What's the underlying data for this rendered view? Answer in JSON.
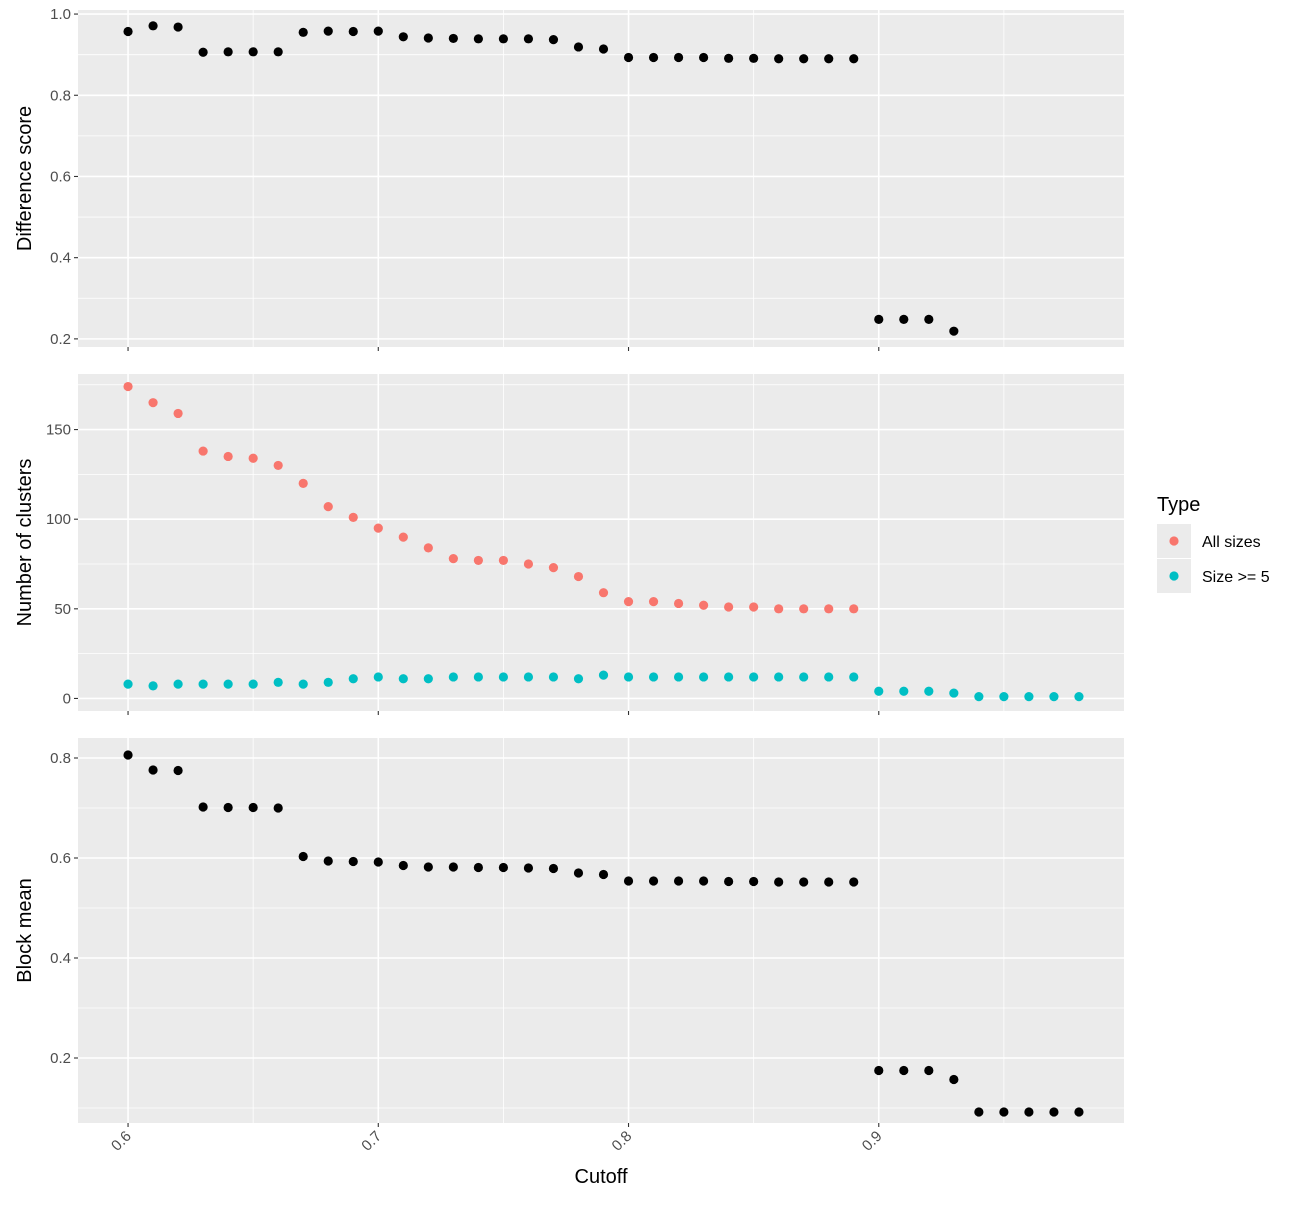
{
  "chart_data": {
    "type": "scatter",
    "xlabel": "Cutoff",
    "x_ticks": [
      "0.6",
      "0.7",
      "0.8",
      "0.9"
    ],
    "xlim": [
      0.58,
      0.998
    ],
    "grid": true,
    "legend": {
      "title": "Type",
      "placement": "right",
      "entries": [
        {
          "label": "All sizes",
          "color": "#F8766D"
        },
        {
          "label": "Size >= 5",
          "color": "#00BFC4"
        }
      ]
    },
    "panels": [
      {
        "ylabel": "Difference score",
        "ylim": [
          0.18,
          1.01
        ],
        "y_ticks": [
          "0.2",
          "0.4",
          "0.6",
          "0.8",
          "1.0"
        ],
        "series": [
          {
            "color": "#000000",
            "x": [
              0.6,
              0.61,
              0.62,
              0.63,
              0.64,
              0.65,
              0.66,
              0.67,
              0.68,
              0.69,
              0.7,
              0.71,
              0.72,
              0.73,
              0.74,
              0.75,
              0.76,
              0.77,
              0.78,
              0.79,
              0.8,
              0.81,
              0.82,
              0.83,
              0.84,
              0.85,
              0.86,
              0.87,
              0.88,
              0.89,
              0.9,
              0.91,
              0.92,
              0.93
            ],
            "y": [
              0.957,
              0.971,
              0.968,
              0.906,
              0.907,
              0.907,
              0.907,
              0.955,
              0.958,
              0.957,
              0.958,
              0.944,
              0.941,
              0.94,
              0.939,
              0.939,
              0.939,
              0.937,
              0.919,
              0.914,
              0.893,
              0.893,
              0.893,
              0.893,
              0.891,
              0.891,
              0.89,
              0.89,
              0.89,
              0.89,
              0.248,
              0.248,
              0.248,
              0.219
            ]
          }
        ]
      },
      {
        "ylabel": "Number of clusters",
        "ylim": [
          -7,
          181
        ],
        "y_ticks": [
          "0",
          "50",
          "100",
          "150"
        ],
        "series": [
          {
            "name": "All sizes",
            "color": "#F8766D",
            "x": [
              0.6,
              0.61,
              0.62,
              0.63,
              0.64,
              0.65,
              0.66,
              0.67,
              0.68,
              0.69,
              0.7,
              0.71,
              0.72,
              0.73,
              0.74,
              0.75,
              0.76,
              0.77,
              0.78,
              0.79,
              0.8,
              0.81,
              0.82,
              0.83,
              0.84,
              0.85,
              0.86,
              0.87,
              0.88,
              0.89
            ],
            "y": [
              174,
              165,
              159,
              138,
              135,
              134,
              130,
              120,
              107,
              101,
              95,
              90,
              84,
              78,
              77,
              77,
              75,
              73,
              68,
              59,
              54,
              54,
              53,
              52,
              51,
              51,
              50,
              50,
              50,
              50
            ]
          },
          {
            "name": "Size >= 5",
            "color": "#00BFC4",
            "x": [
              0.6,
              0.61,
              0.62,
              0.63,
              0.64,
              0.65,
              0.66,
              0.67,
              0.68,
              0.69,
              0.7,
              0.71,
              0.72,
              0.73,
              0.74,
              0.75,
              0.76,
              0.77,
              0.78,
              0.79,
              0.8,
              0.81,
              0.82,
              0.83,
              0.84,
              0.85,
              0.86,
              0.87,
              0.88,
              0.89,
              0.9,
              0.91,
              0.92,
              0.93,
              0.94,
              0.95,
              0.96,
              0.97,
              0.98
            ],
            "y": [
              8,
              7,
              8,
              8,
              8,
              8,
              9,
              8,
              9,
              11,
              12,
              11,
              11,
              12,
              12,
              12,
              12,
              12,
              11,
              13,
              12,
              12,
              12,
              12,
              12,
              12,
              12,
              12,
              12,
              12,
              4,
              4,
              4,
              3,
              1,
              1,
              1,
              1,
              1
            ]
          }
        ]
      },
      {
        "ylabel": "Block mean",
        "ylim": [
          0.07,
          0.84
        ],
        "y_ticks": [
          "0.2",
          "0.4",
          "0.6",
          "0.8"
        ],
        "series": [
          {
            "color": "#000000",
            "x": [
              0.6,
              0.61,
              0.62,
              0.63,
              0.64,
              0.65,
              0.66,
              0.67,
              0.68,
              0.69,
              0.7,
              0.71,
              0.72,
              0.73,
              0.74,
              0.75,
              0.76,
              0.77,
              0.78,
              0.79,
              0.8,
              0.81,
              0.82,
              0.83,
              0.84,
              0.85,
              0.86,
              0.87,
              0.88,
              0.89,
              0.9,
              0.91,
              0.92,
              0.93,
              0.94,
              0.95,
              0.96,
              0.97,
              0.98
            ],
            "y": [
              0.806,
              0.776,
              0.775,
              0.702,
              0.701,
              0.701,
              0.7,
              0.603,
              0.594,
              0.593,
              0.592,
              0.585,
              0.582,
              0.582,
              0.581,
              0.581,
              0.58,
              0.579,
              0.57,
              0.567,
              0.554,
              0.554,
              0.554,
              0.554,
              0.553,
              0.553,
              0.552,
              0.552,
              0.552,
              0.552,
              0.175,
              0.175,
              0.175,
              0.157,
              0.092,
              0.092,
              0.092,
              0.092,
              0.092
            ]
          }
        ]
      }
    ]
  }
}
